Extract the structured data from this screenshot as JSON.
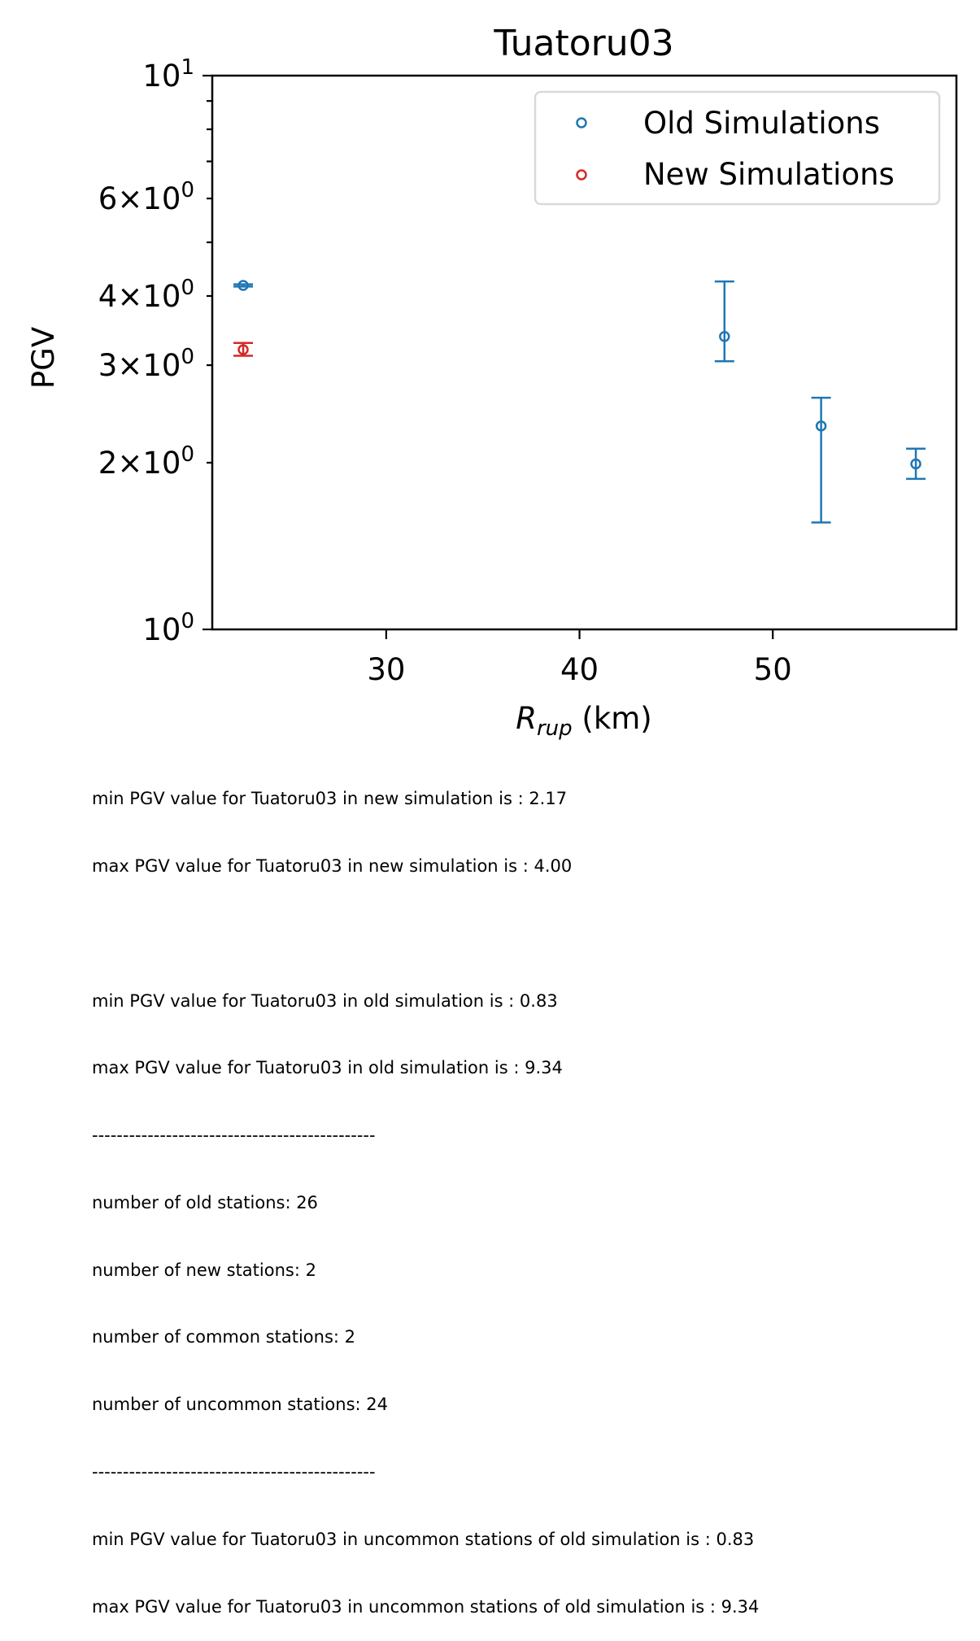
{
  "chart_data": {
    "type": "scatter",
    "title": "Tuatoru03",
    "xlabel_main": "R",
    "xlabel_sub": "rup",
    "xlabel_unit": " (km)",
    "ylabel": "PGV",
    "xlim": [
      21,
      59.5
    ],
    "ylim": [
      1,
      10
    ],
    "yscale": "log",
    "x_ticks": [
      30,
      40,
      50
    ],
    "x_tick_labels": [
      "30",
      "40",
      "50"
    ],
    "y_major_ticks": [
      {
        "value": 1,
        "mant": "",
        "base": "10",
        "exp": "0"
      },
      {
        "value": 10,
        "mant": "",
        "base": "10",
        "exp": "1"
      }
    ],
    "y_minor_labeled": [
      {
        "value": 2,
        "mant": "2",
        "base": "10",
        "exp": "0"
      },
      {
        "value": 3,
        "mant": "3",
        "base": "10",
        "exp": "0"
      },
      {
        "value": 4,
        "mant": "4",
        "base": "10",
        "exp": "0"
      },
      {
        "value": 6,
        "mant": "6",
        "base": "10",
        "exp": "0"
      }
    ],
    "y_minor_unlabeled": [
      5,
      7,
      8,
      9
    ],
    "legend": {
      "placement": "top-right"
    },
    "grid": false,
    "series": [
      {
        "name": "Old Simulations",
        "color": "#1f77b4",
        "points": [
          {
            "x": 22.6,
            "y": 4.18,
            "ylo": 4.16,
            "yhi": 4.2
          },
          {
            "x": 47.5,
            "y": 3.38,
            "ylo": 3.05,
            "yhi": 4.25
          },
          {
            "x": 52.5,
            "y": 2.33,
            "ylo": 1.56,
            "yhi": 2.62
          },
          {
            "x": 57.4,
            "y": 1.99,
            "ylo": 1.87,
            "yhi": 2.12
          }
        ]
      },
      {
        "name": "New Simulations",
        "color": "#d62728",
        "points": [
          {
            "x": 22.6,
            "y": 3.2,
            "ylo": 3.12,
            "yhi": 3.29
          }
        ]
      }
    ]
  },
  "notes": {
    "new_min": "min PGV value for Tuatoru03 in new simulation is : 2.17",
    "new_max": "max PGV value for Tuatoru03 in new simulation is : 4.00",
    "old_min": "min PGV value for Tuatoru03 in old simulation is : 0.83",
    "old_max": "max PGV value for Tuatoru03 in old simulation is : 9.34",
    "separator": "----------------------------------------------",
    "old_stations": "number of old stations: 26",
    "new_stations": "number of new stations: 2",
    "common_stations": "number of common stations: 2",
    "uncommon_stations": "number of uncommon stations: 24",
    "uncommon_min": "min PGV value for Tuatoru03 in uncommon stations of old simulation is : 0.83",
    "uncommon_max": "max PGV value for Tuatoru03 in uncommon stations of old simulation is : 9.34"
  }
}
